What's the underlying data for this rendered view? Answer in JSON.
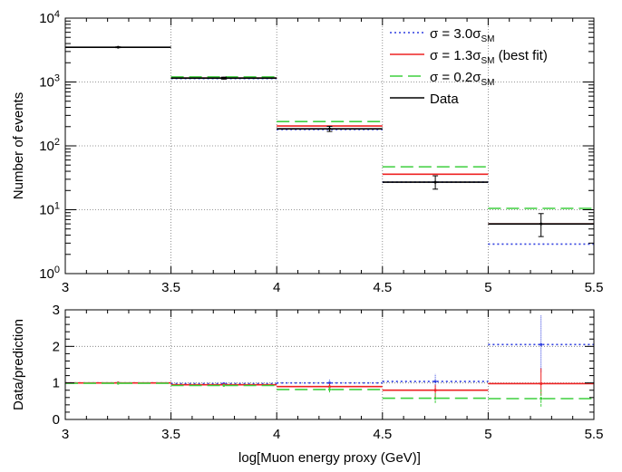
{
  "chart_data": [
    {
      "type": "line",
      "panel": "top",
      "ylabel": "Number of events",
      "yscale": "log",
      "ylim": [
        1,
        10000
      ],
      "xlim": [
        3,
        5.5
      ],
      "grid": true,
      "legend_position": "top-right",
      "bin_edges": [
        3,
        3.5,
        4,
        4.5,
        5,
        5.5
      ],
      "x_ticks": [
        "3",
        "3.5",
        "4",
        "4.5",
        "5",
        "5.5"
      ],
      "y_ticks": [
        {
          "value": 1,
          "base": "10",
          "exp": "0"
        },
        {
          "value": 10,
          "base": "10",
          "exp": "1"
        },
        {
          "value": 100,
          "base": "10",
          "exp": "2"
        },
        {
          "value": 1000,
          "base": "10",
          "exp": "3"
        },
        {
          "value": 10000,
          "base": "10",
          "exp": "4"
        }
      ],
      "series": [
        {
          "name": "σ = 3.0σSM",
          "label_main": "σ = 3.0σ",
          "label_sub": "SM",
          "label_tail": "",
          "color": "#2f3fe0",
          "style": "dotted",
          "values": [
            3500,
            1130,
            180,
            27,
            2.9
          ]
        },
        {
          "name": "σ = 1.3σSM (best fit)",
          "label_main": "σ = 1.3σ",
          "label_sub": "SM",
          "label_tail": " (best fit)",
          "color": "#ee2222",
          "style": "solid",
          "values": [
            3500,
            1150,
            205,
            36,
            6.0
          ]
        },
        {
          "name": "σ = 0.2σSM",
          "label_main": "σ = 0.2σ",
          "label_sub": "SM",
          "label_tail": "",
          "color": "#3ecf3e",
          "style": "dashed",
          "values": [
            3500,
            1200,
            240,
            47,
            10.5
          ]
        },
        {
          "name": "Data",
          "label_main": "Data",
          "label_sub": "",
          "label_tail": "",
          "color": "#000000",
          "style": "solid",
          "values": [
            3500,
            1150,
            185,
            27,
            6.0
          ],
          "errors": [
            [
              3450,
              3550
            ],
            [
              1110,
              1190
            ],
            [
              168,
              202
            ],
            [
              21,
              34
            ],
            [
              3.8,
              8.7
            ]
          ]
        }
      ]
    },
    {
      "type": "line",
      "panel": "bottom",
      "xlabel": "log[Muon energy proxy (GeV)]",
      "ylabel": "Data/prediction",
      "ylim": [
        0,
        3
      ],
      "xlim": [
        3,
        5.5
      ],
      "grid": true,
      "bin_edges": [
        3,
        3.5,
        4,
        4.5,
        5,
        5.5
      ],
      "x_ticks": [
        "3",
        "3.5",
        "4",
        "4.5",
        "5",
        "5.5"
      ],
      "y_ticks": [
        "0",
        "1",
        "2",
        "3"
      ],
      "series": [
        {
          "name": "σ = 3.0σSM",
          "color": "#2f3fe0",
          "style": "dotted",
          "values": [
            1.0,
            0.98,
            1.0,
            1.04,
            2.05
          ],
          "errors": [
            [
              0.99,
              1.01
            ],
            [
              0.95,
              1.01
            ],
            [
              0.91,
              1.1
            ],
            [
              0.8,
              1.25
            ],
            [
              1.3,
              2.85
            ]
          ]
        },
        {
          "name": "σ = 1.3σSM (best fit)",
          "color": "#ee2222",
          "style": "solid",
          "values": [
            1.0,
            0.95,
            0.9,
            0.8,
            0.98
          ],
          "errors": [
            [
              0.99,
              1.01
            ],
            [
              0.92,
              0.98
            ],
            [
              0.82,
              0.98
            ],
            [
              0.6,
              0.95
            ],
            [
              0.65,
              1.4
            ]
          ]
        },
        {
          "name": "σ = 0.2σSM",
          "color": "#3ecf3e",
          "style": "dashed",
          "values": [
            0.99,
            0.93,
            0.82,
            0.58,
            0.57
          ],
          "errors": [
            [
              0.98,
              1.0
            ],
            [
              0.9,
              0.96
            ],
            [
              0.74,
              0.9
            ],
            [
              0.45,
              0.72
            ],
            [
              0.35,
              0.85
            ]
          ]
        }
      ]
    }
  ]
}
